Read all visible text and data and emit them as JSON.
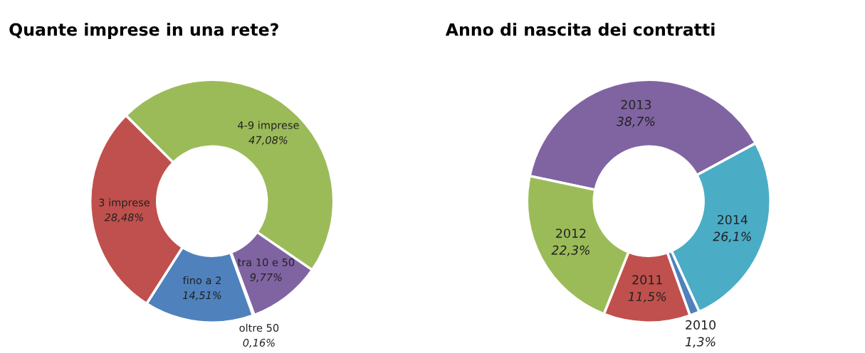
{
  "chart_data": [
    {
      "type": "donut",
      "title": "Quante imprese in una rete?",
      "categories": [
        "4-9 imprese",
        "tra 10 e 50",
        "oltre 50",
        "fino a 2",
        "3 imprese"
      ],
      "values": [
        47.08,
        9.77,
        0.16,
        14.51,
        28.48
      ],
      "value_labels": [
        "47,08%",
        "9,77%",
        "0,16%",
        "14,51%",
        "28,48%"
      ],
      "colors": [
        "#9bbb59",
        "#8064a2",
        "#4bacc6",
        "#4f81bd",
        "#c0504d"
      ]
    },
    {
      "type": "donut",
      "title": "Anno di nascita dei contratti",
      "categories": [
        "2013",
        "2014",
        "2010",
        "2011",
        "2012"
      ],
      "values": [
        38.7,
        26.1,
        1.3,
        11.5,
        22.3
      ],
      "value_labels": [
        "38,7%",
        "26,1%",
        "1,3%",
        "11,5%",
        "22,3%"
      ],
      "colors": [
        "#8064a2",
        "#4bacc6",
        "#4f81bd",
        "#c0504d",
        "#9bbb59"
      ]
    }
  ]
}
